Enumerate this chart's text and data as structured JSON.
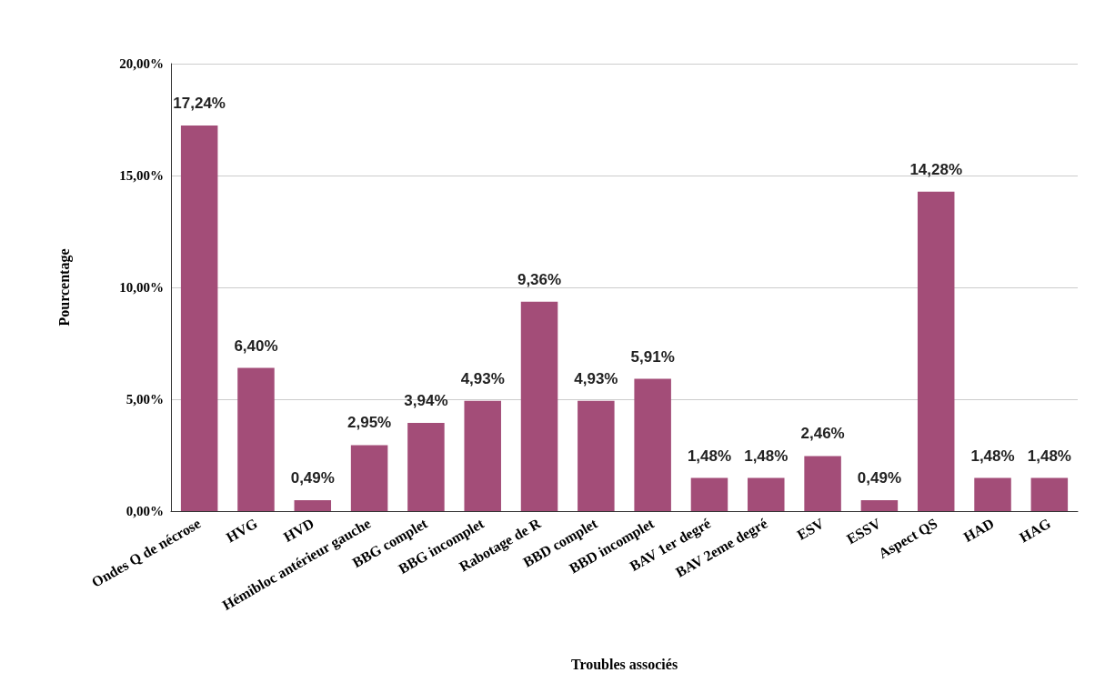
{
  "chart_data": {
    "type": "bar",
    "xlabel": "Troubles associés",
    "ylabel": "Pourcentage",
    "categories": [
      "Ondes Q de nécrose",
      "HVG",
      "HVD",
      "Hémibloc antérieur gauche",
      "BBG complet",
      "BBG incomplet",
      "Rabotage de R",
      "BBD complet",
      "BBD incomplet",
      "BAV 1er degré",
      "BAV 2eme degré",
      "ESV",
      "ESSV",
      "Aspect QS",
      "HAD",
      "HAG"
    ],
    "values": [
      17.24,
      6.4,
      0.49,
      2.95,
      3.94,
      4.93,
      9.36,
      4.93,
      5.91,
      1.48,
      1.48,
      2.46,
      0.49,
      14.28,
      1.48,
      1.48
    ],
    "value_labels": [
      "17,24%",
      "6,40%",
      "0,49%",
      "2,95%",
      "3,94%",
      "4,93%",
      "9,36%",
      "4,93%",
      "5,91%",
      "1,48%",
      "1,48%",
      "2,46%",
      "0,49%",
      "14,28%",
      "1,48%",
      "1,48%"
    ],
    "color": "#a34d78",
    "ylim": [
      0,
      20
    ],
    "yticks": [
      {
        "value": 0,
        "label": "0,00%"
      },
      {
        "value": 5,
        "label": "5,00%"
      },
      {
        "value": 10,
        "label": "10,00%"
      },
      {
        "value": 15,
        "label": "15,00%"
      },
      {
        "value": 20,
        "label": "20,00%"
      }
    ],
    "grid": "y"
  }
}
